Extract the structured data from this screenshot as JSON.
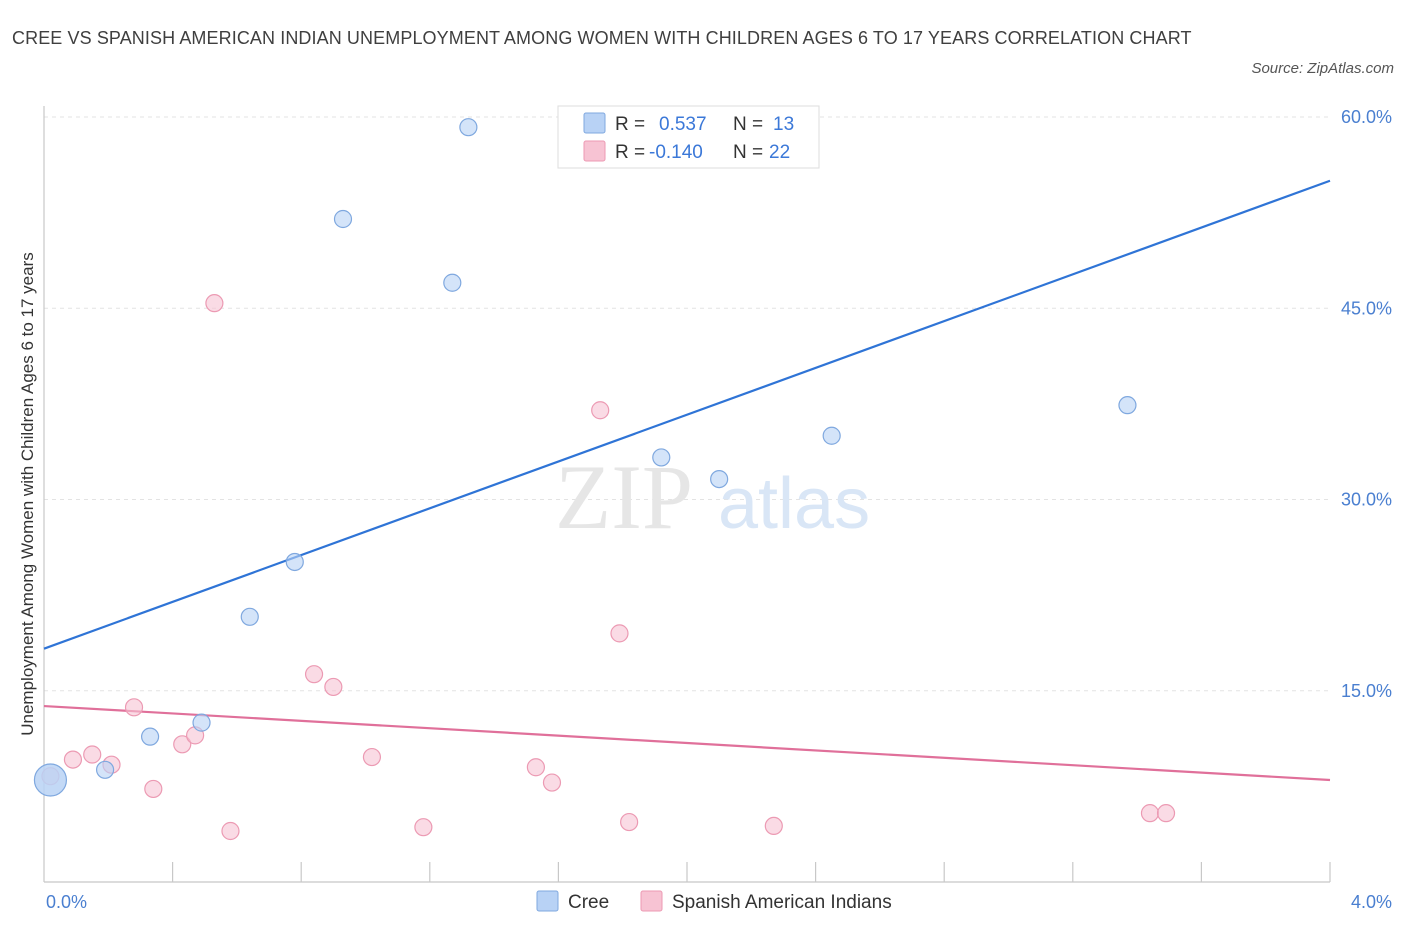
{
  "title": "CREE VS SPANISH AMERICAN INDIAN UNEMPLOYMENT AMONG WOMEN WITH CHILDREN AGES 6 TO 17 YEARS CORRELATION CHART",
  "source": "Source: ZipAtlas.com",
  "watermark": {
    "zip": "ZIP",
    "atlas": "atlas"
  },
  "colors": {
    "cree_fill": "#b8d2f5",
    "cree_stroke": "#7fa8df",
    "cree_line": "#2f74d6",
    "spanish_fill": "#f7c3d3",
    "spanish_stroke": "#ec9ab3",
    "spanish_line": "#e0709a",
    "accent_text": "#3b78d8"
  },
  "legend": {
    "rows": [
      {
        "r_label": "R =",
        "r_value": "0.537",
        "n_label": "N =",
        "n_value": "13"
      },
      {
        "r_label": "R =",
        "r_value": "-0.140",
        "n_label": "N =",
        "n_value": "22"
      }
    ]
  },
  "chart_data": {
    "type": "scatter",
    "title": "CREE VS SPANISH AMERICAN INDIAN UNEMPLOYMENT AMONG WOMEN WITH CHILDREN AGES 6 TO 17 YEARS CORRELATION CHART",
    "xlabel": "",
    "ylabel": "Unemployment Among Women with Children Ages 6 to 17 years",
    "xlim": [
      0,
      4.0
    ],
    "ylim": [
      0,
      60
    ],
    "x_tick_labels": [
      "0.0%",
      "4.0%"
    ],
    "y_tick_labels": [
      {
        "value": 15,
        "label": "15.0%"
      },
      {
        "value": 30,
        "label": "30.0%"
      },
      {
        "value": 45,
        "label": "45.0%"
      },
      {
        "value": 60,
        "label": "60.0%"
      }
    ],
    "grid": true,
    "legend_position": "top-center",
    "series": [
      {
        "name": "Cree",
        "points": [
          {
            "x": 0.02,
            "y": 8.0,
            "big": true
          },
          {
            "x": 0.19,
            "y": 8.8
          },
          {
            "x": 0.33,
            "y": 11.4
          },
          {
            "x": 0.49,
            "y": 12.5
          },
          {
            "x": 0.64,
            "y": 20.8
          },
          {
            "x": 0.78,
            "y": 25.1
          },
          {
            "x": 0.93,
            "y": 52.0
          },
          {
            "x": 1.27,
            "y": 47.0
          },
          {
            "x": 1.32,
            "y": 59.2
          },
          {
            "x": 1.92,
            "y": 33.3
          },
          {
            "x": 2.1,
            "y": 31.6
          },
          {
            "x": 2.45,
            "y": 35.0
          },
          {
            "x": 3.37,
            "y": 37.4
          }
        ],
        "trend": {
          "x": [
            0,
            4.0
          ],
          "y": [
            18.3,
            55.0
          ]
        }
      },
      {
        "name": "Spanish American Indians",
        "points": [
          {
            "x": 0.02,
            "y": 8.3
          },
          {
            "x": 0.09,
            "y": 9.6
          },
          {
            "x": 0.15,
            "y": 10.0
          },
          {
            "x": 0.21,
            "y": 9.2
          },
          {
            "x": 0.28,
            "y": 13.7
          },
          {
            "x": 0.34,
            "y": 7.3
          },
          {
            "x": 0.43,
            "y": 10.8
          },
          {
            "x": 0.47,
            "y": 11.5
          },
          {
            "x": 0.53,
            "y": 45.4
          },
          {
            "x": 0.58,
            "y": 4.0
          },
          {
            "x": 0.84,
            "y": 16.3
          },
          {
            "x": 0.9,
            "y": 15.3
          },
          {
            "x": 1.02,
            "y": 9.8
          },
          {
            "x": 1.18,
            "y": 4.3
          },
          {
            "x": 1.53,
            "y": 9.0
          },
          {
            "x": 1.58,
            "y": 7.8
          },
          {
            "x": 1.73,
            "y": 37.0
          },
          {
            "x": 1.79,
            "y": 19.5
          },
          {
            "x": 1.82,
            "y": 4.7
          },
          {
            "x": 2.27,
            "y": 4.4
          },
          {
            "x": 3.44,
            "y": 5.4
          },
          {
            "x": 3.49,
            "y": 5.4
          }
        ],
        "trend": {
          "x": [
            0,
            4.0
          ],
          "y": [
            13.8,
            8.0
          ]
        }
      }
    ]
  }
}
